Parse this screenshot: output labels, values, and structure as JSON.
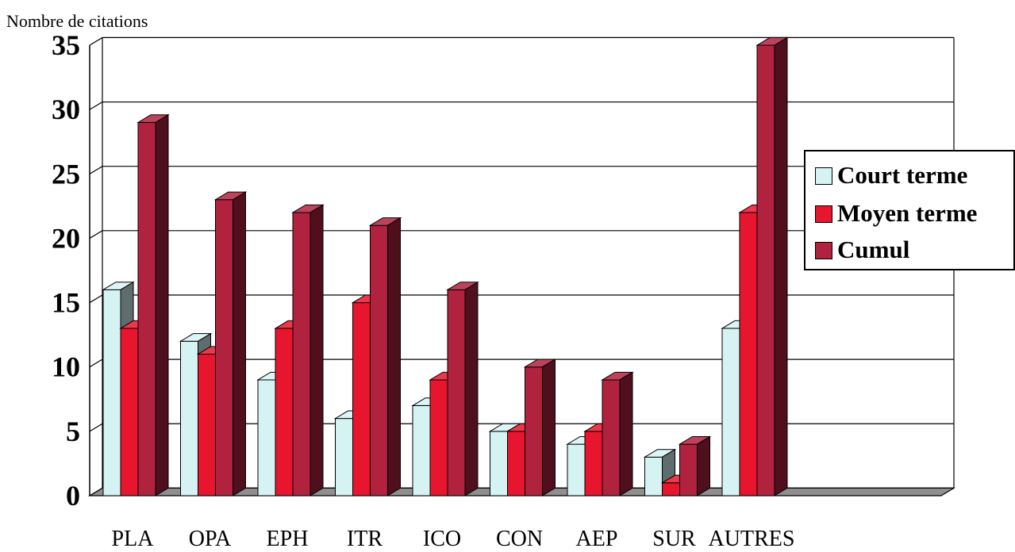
{
  "chart_data": {
    "type": "bar",
    "title": "",
    "ylabel": "Nombre de citations",
    "xlabel": "",
    "ylim": [
      0,
      35
    ],
    "yticks": [
      0,
      5,
      10,
      15,
      20,
      25,
      30,
      35
    ],
    "grid": true,
    "legend_position": "right",
    "categories": [
      "PLA",
      "OPA",
      "EPH",
      "ITR",
      "ICO",
      "CON",
      "AEP",
      "SUR",
      "AUTRES",
      ""
    ],
    "series": [
      {
        "name": "Court terme",
        "color": "#d6f3f4",
        "values": [
          16,
          12,
          9,
          6,
          7,
          5,
          4,
          3,
          13,
          0
        ]
      },
      {
        "name": "Moyen terme",
        "color": "#e8152e",
        "values": [
          13,
          11,
          13,
          15,
          9,
          5,
          5,
          1,
          22,
          0
        ]
      },
      {
        "name": "Cumul",
        "color": "#b0223e",
        "values": [
          29,
          23,
          22,
          21,
          16,
          10,
          9,
          4,
          35,
          0
        ]
      }
    ]
  }
}
